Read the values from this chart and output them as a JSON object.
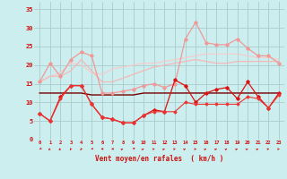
{
  "x": [
    0,
    1,
    2,
    3,
    4,
    5,
    6,
    7,
    8,
    9,
    10,
    11,
    12,
    13,
    14,
    15,
    16,
    17,
    18,
    19,
    20,
    21,
    22,
    23
  ],
  "line1": [
    15.5,
    20.5,
    17.0,
    21.5,
    23.5,
    22.5,
    12.5,
    12.5,
    13.0,
    13.5,
    14.5,
    15.0,
    14.0,
    15.0,
    27.0,
    31.5,
    26.0,
    25.5,
    25.5,
    27.0,
    24.5,
    22.5,
    22.5,
    20.5
  ],
  "line2": [
    15.5,
    17.0,
    18.0,
    20.5,
    20.0,
    18.0,
    17.5,
    19.0,
    19.5,
    20.0,
    20.5,
    20.5,
    21.0,
    21.5,
    22.0,
    22.5,
    23.0,
    23.0,
    23.0,
    23.0,
    22.5,
    22.0,
    22.0,
    21.5
  ],
  "line3": [
    15.5,
    17.0,
    17.0,
    18.5,
    21.5,
    18.5,
    15.5,
    15.5,
    16.5,
    17.5,
    18.5,
    19.5,
    20.0,
    20.5,
    21.0,
    21.5,
    21.0,
    20.5,
    20.5,
    21.0,
    21.0,
    21.0,
    21.0,
    21.0
  ],
  "line4": [
    7.0,
    5.0,
    11.5,
    14.5,
    14.5,
    9.5,
    6.0,
    5.5,
    4.5,
    4.5,
    6.5,
    8.0,
    7.5,
    16.0,
    14.5,
    10.0,
    12.5,
    13.5,
    14.0,
    11.0,
    15.5,
    11.5,
    8.5,
    12.5
  ],
  "line5": [
    12.5,
    12.5,
    12.5,
    12.5,
    12.5,
    12.0,
    12.0,
    12.0,
    12.0,
    12.0,
    12.5,
    12.5,
    12.5,
    12.5,
    12.5,
    12.5,
    12.5,
    12.5,
    12.5,
    12.5,
    12.5,
    12.5,
    12.5,
    12.5
  ],
  "line6": [
    7.0,
    5.0,
    11.0,
    14.5,
    14.5,
    9.5,
    6.0,
    5.5,
    4.5,
    4.5,
    6.5,
    7.5,
    7.5,
    7.5,
    10.0,
    9.5,
    9.5,
    9.5,
    9.5,
    9.5,
    11.5,
    11.0,
    8.5,
    12.0
  ],
  "color1": "#f09898",
  "color2": "#f4b8b8",
  "color3": "#f4cccc",
  "color4": "#dd1111",
  "color5": "#770000",
  "color6": "#ee3333",
  "bg_color": "#cceeee",
  "grid_color": "#aacccc",
  "tick_color": "#cc1111",
  "xlabel": "Vent moyen/en rafales  ( km/h )",
  "ylim": [
    0,
    37
  ],
  "xlim": [
    -0.5,
    23.5
  ],
  "yticks": [
    0,
    5,
    10,
    15,
    20,
    25,
    30,
    35
  ],
  "xticks": [
    0,
    1,
    2,
    3,
    4,
    5,
    6,
    7,
    8,
    9,
    10,
    11,
    12,
    13,
    14,
    15,
    16,
    17,
    18,
    19,
    20,
    21,
    22,
    23
  ],
  "arrow_angles": [
    225,
    210,
    210,
    195,
    195,
    240,
    270,
    270,
    45,
    30,
    45,
    60,
    45,
    60,
    45,
    60,
    45,
    45,
    45,
    45,
    45,
    45,
    60,
    60
  ]
}
